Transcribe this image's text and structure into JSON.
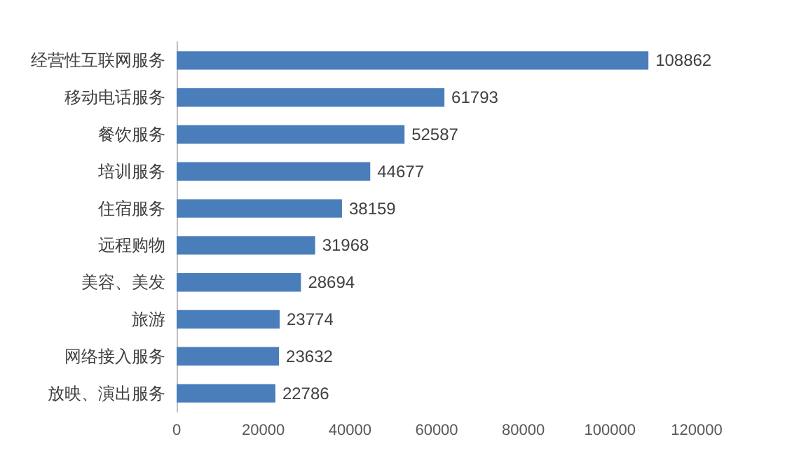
{
  "chart_data": {
    "type": "bar",
    "orientation": "horizontal",
    "categories": [
      "经营性互联网服务",
      "移动电话服务",
      "餐饮服务",
      "培训服务",
      "住宿服务",
      "远程购物",
      "美容、美发",
      "旅游",
      "网络接入服务",
      "放映、演出服务"
    ],
    "values": [
      108862,
      61793,
      52587,
      44677,
      38159,
      31968,
      28694,
      23774,
      23632,
      22786
    ],
    "color": "#4a7ebb",
    "xlim": [
      0,
      120000
    ],
    "xticks": [
      0,
      20000,
      40000,
      60000,
      80000,
      100000,
      120000
    ],
    "grid": false,
    "data_labels": true
  }
}
